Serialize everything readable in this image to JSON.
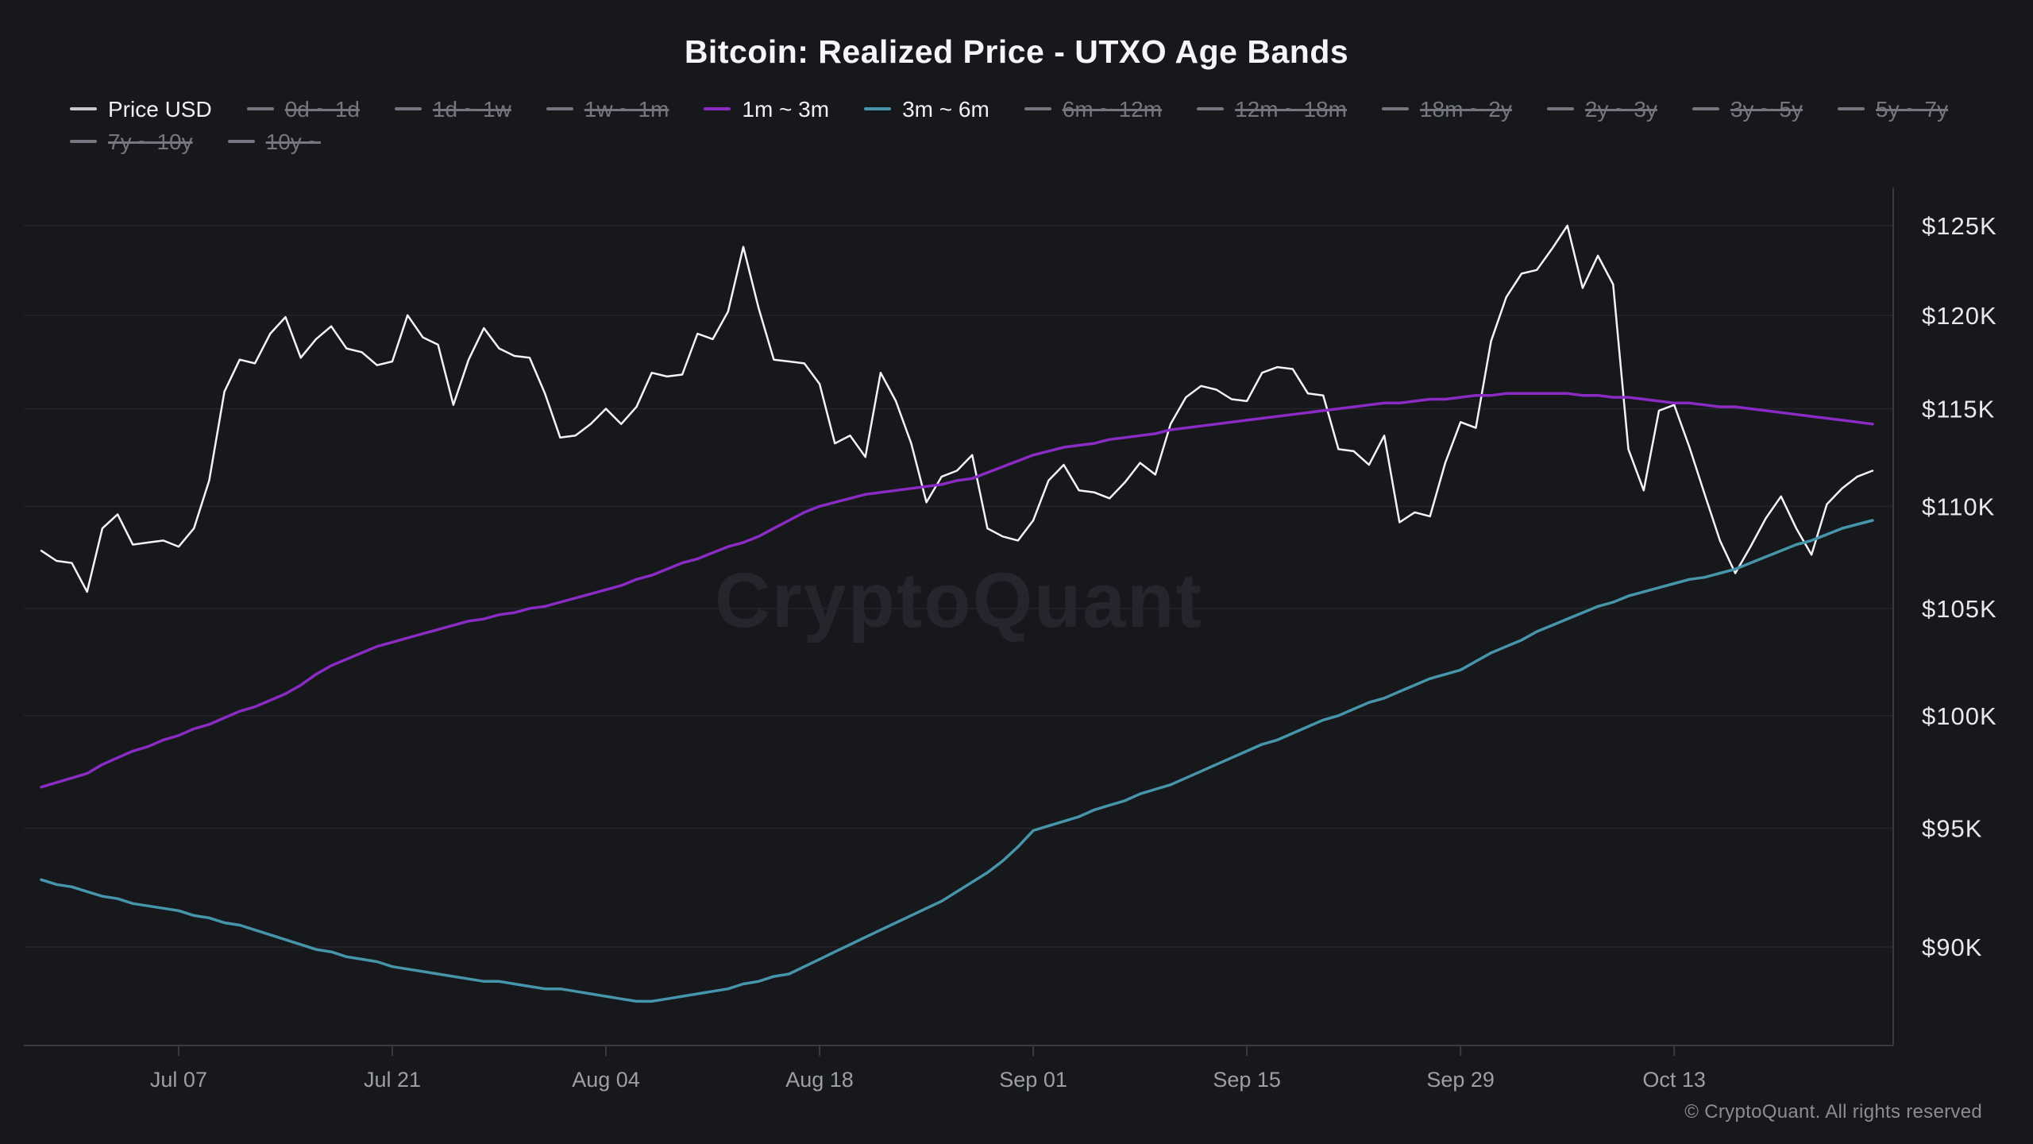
{
  "title": "Bitcoin: Realized Price - UTXO Age Bands",
  "watermark": "CryptoQuant",
  "copyright": "© CryptoQuant. All rights reserved",
  "colors": {
    "background": "#17181c",
    "gridline": "#24252b",
    "axis_line": "#3a3b42",
    "y_label": "#e8e9ed",
    "x_label": "#9d9ea6",
    "active_label": "#f0f1f3",
    "inactive_label": "#75767f",
    "price_line": "#f4f4f6",
    "band_1m_3m": "#8a2bc4",
    "band_3m_6m": "#4695aa"
  },
  "legend": {
    "rows": [
      [
        {
          "label": "Price USD",
          "color": "#c6c7cd",
          "active": true
        },
        {
          "label": "0d ~ 1d",
          "color": "#75767f",
          "active": false
        },
        {
          "label": "1d ~ 1w",
          "color": "#75767f",
          "active": false
        },
        {
          "label": "1w ~ 1m",
          "color": "#75767f",
          "active": false
        },
        {
          "label": "1m ~ 3m",
          "color": "#8a2bc4",
          "active": true
        },
        {
          "label": "3m ~ 6m",
          "color": "#4695aa",
          "active": true
        },
        {
          "label": "6m ~ 12m",
          "color": "#75767f",
          "active": false
        },
        {
          "label": "12m ~ 18m",
          "color": "#75767f",
          "active": false
        },
        {
          "label": "18m ~ 2y",
          "color": "#75767f",
          "active": false
        },
        {
          "label": "2y ~ 3y",
          "color": "#75767f",
          "active": false
        },
        {
          "label": "3y ~ 5y",
          "color": "#75767f",
          "active": false
        },
        {
          "label": "5y ~ 7y",
          "color": "#75767f",
          "active": false
        }
      ],
      [
        {
          "label": "7y ~ 10y",
          "color": "#75767f",
          "active": false
        },
        {
          "label": "10y ~",
          "color": "#75767f",
          "active": false
        }
      ]
    ]
  },
  "chart_data": {
    "type": "line",
    "title": "Bitcoin: Realized Price - UTXO Age Bands",
    "unit": "thousand USD",
    "x_start": "Jun 28",
    "x_end": "Oct 26",
    "frequency": "daily",
    "y_axis": {
      "scale": "log",
      "ticks": [
        90,
        95,
        100,
        105,
        110,
        115,
        120,
        125
      ],
      "labels": [
        "$90K",
        "$95K",
        "$100K",
        "$105K",
        "$110K",
        "$115K",
        "$120K",
        "$125K"
      ]
    },
    "x_axis": {
      "tick_labels": [
        "Jul 07",
        "Jul 21",
        "Aug 04",
        "Aug 18",
        "Sep 01",
        "Sep 15",
        "Sep 29",
        "Oct 13"
      ],
      "tick_indices": [
        9,
        23,
        37,
        51,
        65,
        79,
        93,
        107
      ]
    },
    "grid": "horizontal",
    "legend_position": "top-left",
    "series": [
      {
        "name": "Price USD",
        "color": "#f4f4f6",
        "width": 2.5,
        "values": [
          107.8,
          107.3,
          107.2,
          105.8,
          108.9,
          109.6,
          108.1,
          108.2,
          108.3,
          108.0,
          108.9,
          111.3,
          115.9,
          117.6,
          117.4,
          119.0,
          119.9,
          117.7,
          118.7,
          119.4,
          118.2,
          118.0,
          117.3,
          117.5,
          120.0,
          118.8,
          118.4,
          115.2,
          117.6,
          119.3,
          118.2,
          117.8,
          117.7,
          115.8,
          113.5,
          113.6,
          114.2,
          115.0,
          114.2,
          115.1,
          116.9,
          116.7,
          116.8,
          119.0,
          118.7,
          120.2,
          123.8,
          120.4,
          117.6,
          117.5,
          117.4,
          116.3,
          113.2,
          113.6,
          112.5,
          116.9,
          115.4,
          113.2,
          110.2,
          111.5,
          111.8,
          112.6,
          108.9,
          108.5,
          108.3,
          109.3,
          111.3,
          112.1,
          110.8,
          110.7,
          110.4,
          111.2,
          112.2,
          111.6,
          114.2,
          115.6,
          116.2,
          116.0,
          115.5,
          115.4,
          116.9,
          117.2,
          117.1,
          115.8,
          115.7,
          112.9,
          112.8,
          112.1,
          113.6,
          109.2,
          109.7,
          109.5,
          112.2,
          114.3,
          114.0,
          118.6,
          121.0,
          122.3,
          122.5,
          123.7,
          125.0,
          121.5,
          123.3,
          121.7,
          112.9,
          110.8,
          114.9,
          115.2,
          113.0,
          110.6,
          108.3,
          106.7,
          108.0,
          109.4,
          110.5,
          108.9,
          107.6,
          110.1,
          110.9,
          111.5,
          111.8
        ]
      },
      {
        "name": "1m ~ 3m",
        "color": "#8a2bc4",
        "width": 3.5,
        "values": [
          96.8,
          97.0,
          97.2,
          97.4,
          97.8,
          98.1,
          98.4,
          98.6,
          98.9,
          99.1,
          99.4,
          99.6,
          99.9,
          100.2,
          100.4,
          100.7,
          101.0,
          101.4,
          101.9,
          102.3,
          102.6,
          102.9,
          103.2,
          103.4,
          103.6,
          103.8,
          104.0,
          104.2,
          104.4,
          104.5,
          104.7,
          104.8,
          105.0,
          105.1,
          105.3,
          105.5,
          105.7,
          105.9,
          106.1,
          106.4,
          106.6,
          106.9,
          107.2,
          107.4,
          107.7,
          108.0,
          108.2,
          108.5,
          108.9,
          109.3,
          109.7,
          110.0,
          110.2,
          110.4,
          110.6,
          110.7,
          110.8,
          110.9,
          111.0,
          111.1,
          111.3,
          111.4,
          111.7,
          112.0,
          112.3,
          112.6,
          112.8,
          113.0,
          113.1,
          113.2,
          113.4,
          113.5,
          113.6,
          113.7,
          113.9,
          114.0,
          114.1,
          114.2,
          114.3,
          114.4,
          114.5,
          114.6,
          114.7,
          114.8,
          114.9,
          115.0,
          115.1,
          115.2,
          115.3,
          115.3,
          115.4,
          115.5,
          115.5,
          115.6,
          115.7,
          115.7,
          115.8,
          115.8,
          115.8,
          115.8,
          115.8,
          115.7,
          115.7,
          115.6,
          115.6,
          115.5,
          115.4,
          115.3,
          115.3,
          115.2,
          115.1,
          115.1,
          115.0,
          114.9,
          114.8,
          114.7,
          114.6,
          114.5,
          114.4,
          114.3,
          114.2
        ]
      },
      {
        "name": "3m ~ 6m",
        "color": "#4695aa",
        "width": 3.5,
        "values": [
          92.8,
          92.6,
          92.5,
          92.3,
          92.1,
          92.0,
          91.8,
          91.7,
          91.6,
          91.5,
          91.3,
          91.2,
          91.0,
          90.9,
          90.7,
          90.5,
          90.3,
          90.1,
          89.9,
          89.8,
          89.6,
          89.5,
          89.4,
          89.2,
          89.1,
          89.0,
          88.9,
          88.8,
          88.7,
          88.6,
          88.6,
          88.5,
          88.4,
          88.3,
          88.3,
          88.2,
          88.1,
          88.0,
          87.9,
          87.8,
          87.8,
          87.9,
          88.0,
          88.1,
          88.2,
          88.3,
          88.5,
          88.6,
          88.8,
          88.9,
          89.2,
          89.5,
          89.8,
          90.1,
          90.4,
          90.7,
          91.0,
          91.3,
          91.6,
          91.9,
          92.3,
          92.7,
          93.1,
          93.6,
          94.2,
          94.9,
          95.1,
          95.3,
          95.5,
          95.8,
          96.0,
          96.2,
          96.5,
          96.7,
          96.9,
          97.2,
          97.5,
          97.8,
          98.1,
          98.4,
          98.7,
          98.9,
          99.2,
          99.5,
          99.8,
          100.0,
          100.3,
          100.6,
          100.8,
          101.1,
          101.4,
          101.7,
          101.9,
          102.1,
          102.5,
          102.9,
          103.2,
          103.5,
          103.9,
          104.2,
          104.5,
          104.8,
          105.1,
          105.3,
          105.6,
          105.8,
          106.0,
          106.2,
          106.4,
          106.5,
          106.7,
          106.9,
          107.2,
          107.5,
          107.8,
          108.1,
          108.3,
          108.6,
          108.9,
          109.1,
          109.3
        ]
      }
    ]
  }
}
